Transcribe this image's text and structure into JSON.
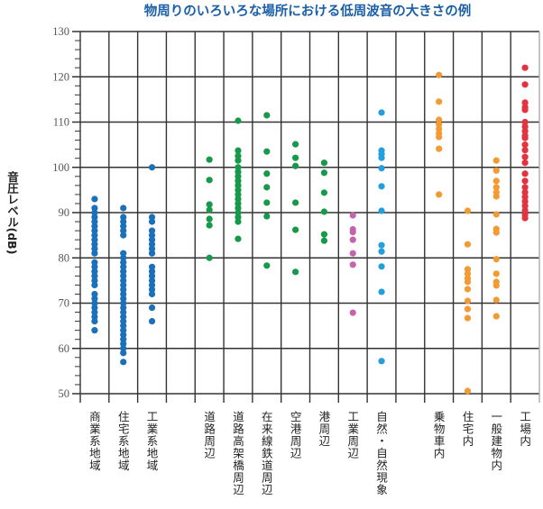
{
  "chart_data": {
    "type": "scatter",
    "title": "物周りのいろいろな場所における低周波音の大きさの例",
    "ylabel": "音圧レベル(dB)",
    "xlabel": "",
    "ylim": [
      50,
      130
    ],
    "yticks": [
      50,
      60,
      70,
      80,
      90,
      100,
      110,
      120,
      130
    ],
    "grid": true,
    "categories": [
      "商業系地域",
      "住宅系地域",
      "工業系地域",
      "",
      "道路周辺",
      "道路高架橋周辺",
      "在来線鉄道周辺",
      "空港周辺",
      "港周辺",
      "工業周辺",
      "自然・自然現象",
      "",
      "乗物車内",
      "住宅内",
      "一般建物内",
      "工場内"
    ],
    "colors": [
      "#1c6fb9",
      "#1c6fb9",
      "#1c6fb9",
      "",
      "#16994b",
      "#16994b",
      "#16994b",
      "#16994b",
      "#16994b",
      "#c563ab",
      "#239fdb",
      "",
      "#f39a33",
      "#f39a33",
      "#f39a33",
      "#e5323f"
    ],
    "values": [
      [
        93,
        91,
        90,
        89,
        88,
        87,
        86,
        85,
        84,
        83,
        82,
        81,
        79,
        78,
        77,
        76,
        75,
        74,
        72,
        71,
        70,
        69,
        68,
        67,
        66,
        64
      ],
      [
        91,
        89,
        88,
        87,
        86,
        85,
        81,
        80,
        79,
        78,
        77,
        76,
        75,
        74,
        73,
        72,
        71,
        70,
        69,
        68,
        67,
        66,
        65,
        64,
        63,
        62,
        61,
        60,
        59,
        57
      ],
      [
        100,
        89,
        88,
        86,
        85,
        84,
        83,
        82,
        81,
        78,
        77,
        76,
        75,
        74,
        73,
        72,
        69,
        66
      ],
      [],
      [
        101.7,
        97.2,
        91.8,
        90.6,
        88.6,
        87.2,
        80
      ],
      [
        110.3,
        103.7,
        102.5,
        101.5,
        100,
        99,
        98,
        97,
        96,
        95,
        94,
        93,
        92,
        91,
        90,
        89,
        88,
        84.2
      ],
      [
        111.5,
        103.5,
        98.6,
        95.6,
        92.2,
        89.2,
        78.3
      ],
      [
        105.1,
        102.1,
        100.3,
        92.2,
        86.2,
        76.9
      ],
      [
        101,
        98.8,
        94.4,
        90.2,
        85.2,
        83.8
      ],
      [
        89.4,
        86.3,
        85.7,
        84,
        81,
        78.5,
        67.9
      ],
      [
        112.1,
        103.7,
        102.9,
        102.1,
        99.8,
        95.8,
        90.4,
        82.8,
        81.4,
        78.1,
        72.5,
        57.2
      ],
      [],
      [
        120.4,
        114.5,
        110.5,
        109.5,
        108.5,
        107.5,
        106.7,
        104.1,
        94
      ],
      [
        90.4,
        83,
        77.5,
        76.5,
        75.5,
        74.7,
        73.1,
        70.5,
        68.7,
        66.7,
        50.6
      ],
      [
        101.5,
        99.3,
        97,
        95.6,
        94.5,
        93.6,
        89.6,
        86.4,
        85.6,
        79.7,
        76.5,
        74.7,
        73.9,
        70.7,
        67.1
      ],
      [
        122,
        118.3,
        114.3,
        113.3,
        112.7,
        110,
        109,
        108,
        107,
        106.5,
        105,
        103.8,
        102.3,
        101,
        98.6,
        97,
        95.6,
        94.5,
        93.5,
        92.5,
        91.5,
        90.5,
        89.6,
        88.8
      ]
    ]
  }
}
